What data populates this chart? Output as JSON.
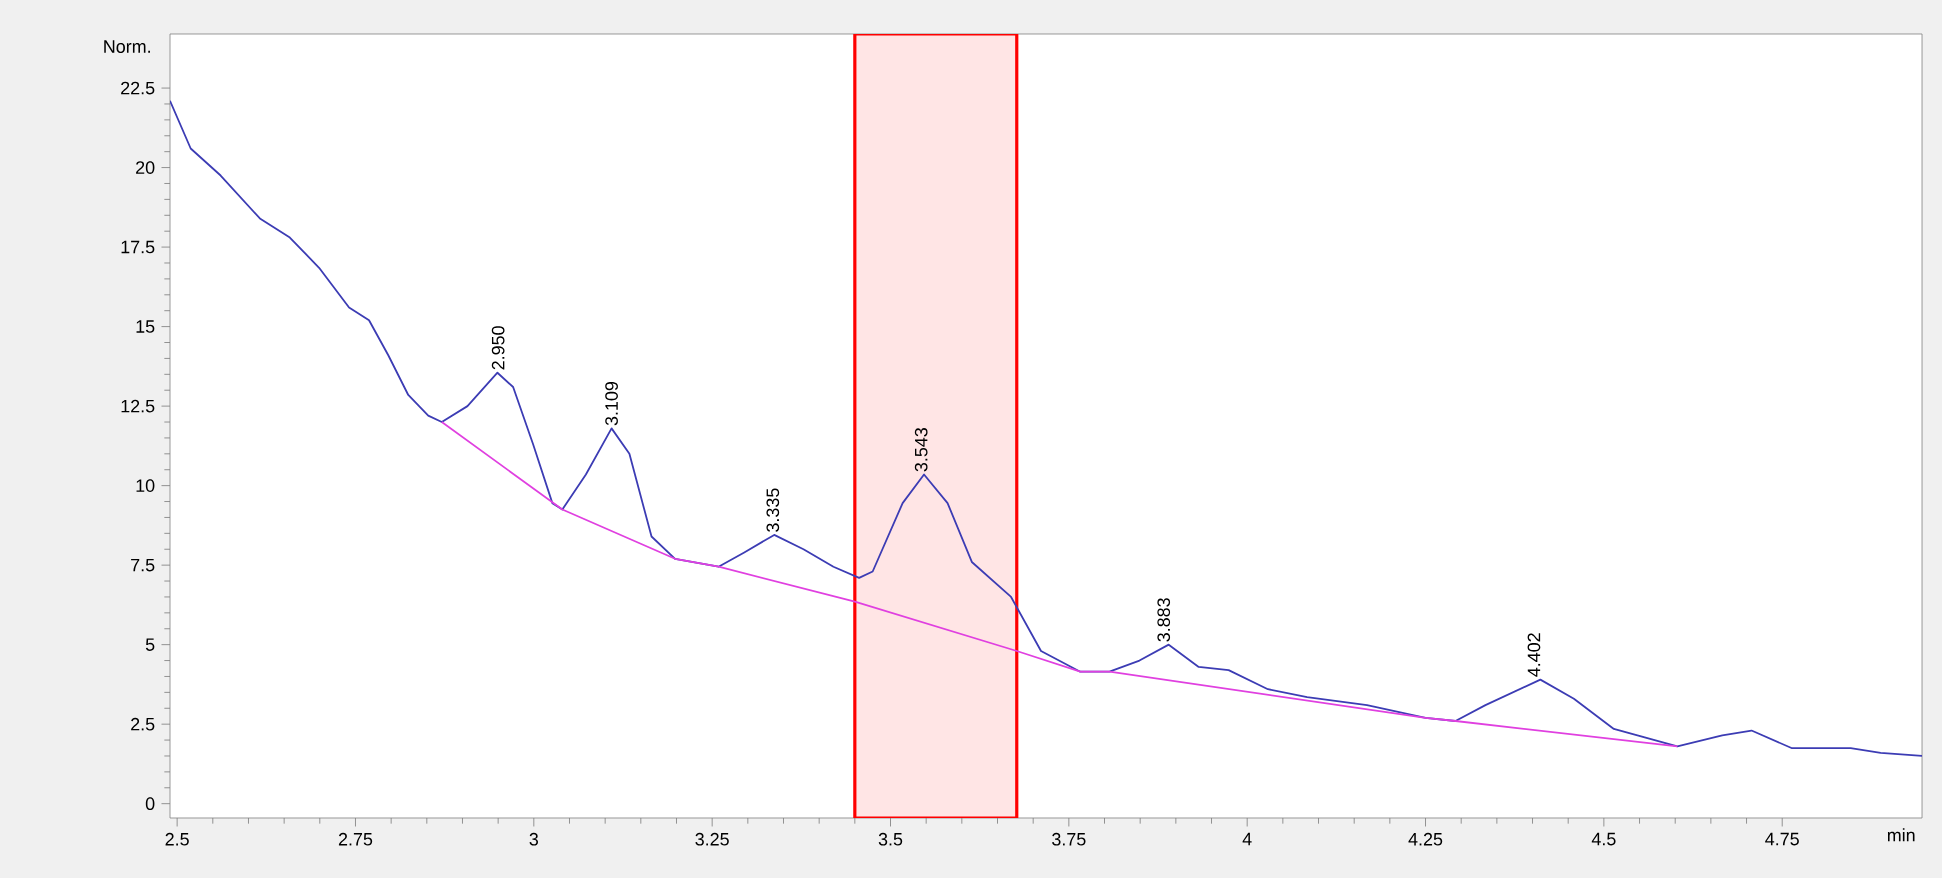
{
  "chart_data": {
    "type": "line",
    "xlabel": "min",
    "ylabel": "Norm.",
    "xlim": [
      2.49,
      4.946
    ],
    "ylim": [
      -0.45,
      24.2
    ],
    "xticks": [
      2.5,
      2.75,
      3,
      3.25,
      3.5,
      3.75,
      4,
      4.25,
      4.5,
      4.75
    ],
    "yticks": [
      0,
      2.5,
      5,
      7.5,
      10,
      12.5,
      15,
      17.5,
      20,
      22.5
    ],
    "grid": false,
    "marker": "none",
    "line_style": "solid",
    "series": [
      {
        "color": "#3c3cb4",
        "x": [
          2.49,
          2.519,
          2.561,
          2.616,
          2.658,
          2.699,
          2.741,
          2.769,
          2.796,
          2.824,
          2.852,
          2.871,
          2.907,
          2.949,
          2.971,
          2.999,
          3.026,
          3.04,
          3.073,
          3.109,
          3.134,
          3.165,
          3.198,
          3.259,
          3.295,
          3.337,
          3.378,
          3.42,
          3.456,
          3.475,
          3.517,
          3.547,
          3.58,
          3.614,
          3.669,
          3.711,
          3.766,
          3.807,
          3.849,
          3.89,
          3.932,
          3.974,
          4.029,
          4.084,
          4.168,
          4.25,
          4.292,
          4.334,
          4.411,
          4.458,
          4.514,
          4.603,
          4.666,
          4.707,
          4.763,
          4.846,
          4.888,
          4.946
        ],
        "values": [
          22.1,
          20.6,
          19.75,
          18.4,
          17.8,
          16.85,
          15.6,
          15.2,
          14.1,
          12.85,
          12.2,
          12.0,
          12.5,
          13.55,
          13.1,
          11.3,
          9.45,
          9.25,
          10.35,
          11.8,
          11.0,
          8.4,
          7.7,
          7.45,
          7.9,
          8.45,
          8.0,
          7.45,
          7.1,
          7.3,
          9.45,
          10.35,
          9.45,
          7.6,
          6.5,
          4.8,
          4.15,
          4.15,
          4.5,
          5.0,
          4.3,
          4.2,
          3.6,
          3.35,
          3.1,
          2.7,
          2.6,
          3.1,
          3.9,
          3.3,
          2.35,
          1.8,
          2.15,
          2.3,
          1.75,
          1.75,
          1.6,
          1.5
        ]
      },
      {
        "color": "#e040e0",
        "x": [
          2.871,
          3.04,
          3.198,
          3.259,
          3.45,
          3.677,
          3.766,
          3.807,
          4.25,
          4.292,
          4.603
        ],
        "values": [
          12.0,
          9.25,
          7.7,
          7.45,
          6.35,
          4.8,
          4.15,
          4.15,
          2.7,
          2.6,
          1.8
        ]
      }
    ],
    "bands": [
      {
        "axis": "x",
        "from": 3.45,
        "to": 3.677,
        "color": "#ff0000"
      }
    ],
    "annotations": [
      {
        "text": "2.950",
        "x": 2.95,
        "y": 13.55
      },
      {
        "text": "3.109",
        "x": 3.109,
        "y": 11.8
      },
      {
        "text": "3.335",
        "x": 3.335,
        "y": 8.45
      },
      {
        "text": "3.543",
        "x": 3.543,
        "y": 10.35
      },
      {
        "text": "3.883",
        "x": 3.883,
        "y": 5.0
      },
      {
        "text": "4.402",
        "x": 4.402,
        "y": 3.9
      }
    ]
  }
}
